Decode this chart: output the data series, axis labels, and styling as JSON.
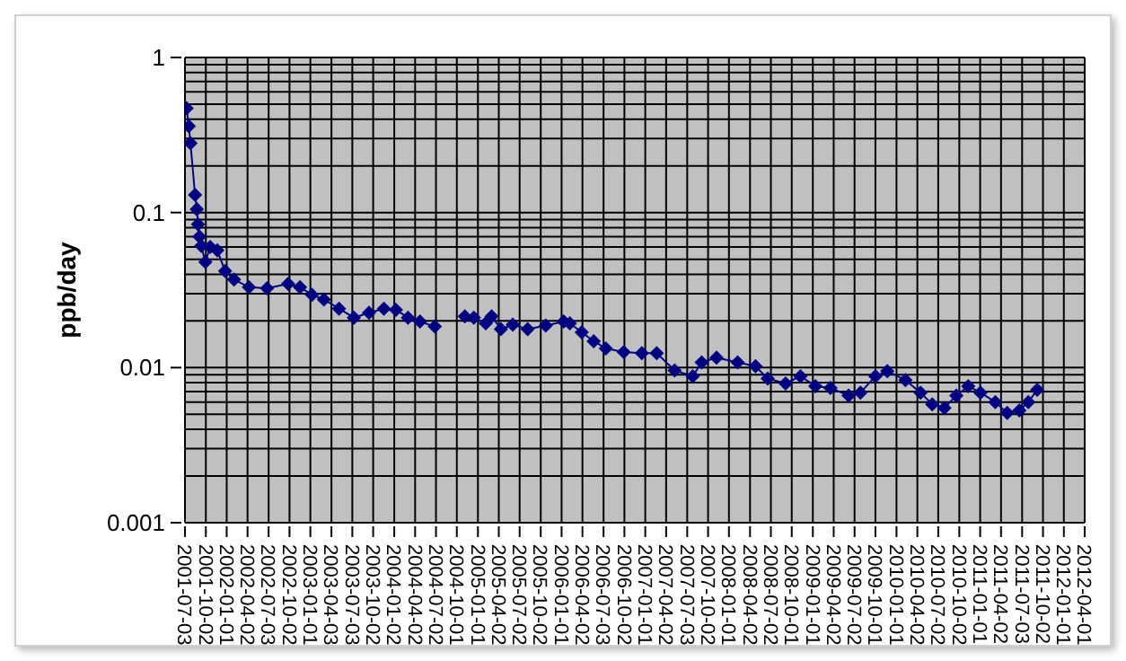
{
  "chart_data": {
    "type": "line",
    "ylabel": "ppb/day",
    "log": true,
    "grid": true,
    "legend": false,
    "marker": "diamond",
    "line_style": "solid",
    "xlim": [
      "2001-07-03",
      "2012-04-01"
    ],
    "xticks": [
      "2001-07-03",
      "2001-10-02",
      "2002-01-01",
      "2002-04-02",
      "2002-07-03",
      "2002-10-02",
      "2003-01-01",
      "2003-04-03",
      "2003-07-03",
      "2003-10-02",
      "2004-01-02",
      "2004-04-02",
      "2004-07-02",
      "2004-10-01",
      "2005-01-01",
      "2005-04-02",
      "2005-07-02",
      "2005-10-02",
      "2006-01-01",
      "2006-04-02",
      "2006-07-03",
      "2006-10-02",
      "2007-01-01",
      "2007-04-02",
      "2007-07-03",
      "2007-10-02",
      "2008-01-01",
      "2008-04-02",
      "2008-07-02",
      "2008-10-01",
      "2009-01-01",
      "2009-04-02",
      "2009-07-02",
      "2009-10-01",
      "2010-01-01",
      "2010-04-02",
      "2010-07-02",
      "2010-10-02",
      "2011-01-01",
      "2011-04-02",
      "2011-07-03",
      "2011-10-02",
      "2012-01-01",
      "2012-04-01"
    ],
    "ylim": [
      0.001,
      1
    ],
    "yticks": [
      0.001,
      {
        "value": 0.002,
        "label": null
      },
      {
        "value": 0.003,
        "label": null
      },
      {
        "value": 0.004,
        "label": null
      },
      {
        "value": 0.005,
        "label": null
      },
      {
        "value": 0.006,
        "label": null
      },
      {
        "value": 0.007,
        "label": null
      },
      {
        "value": 0.008,
        "label": null
      },
      {
        "value": 0.009,
        "label": null
      },
      0.01,
      {
        "value": 0.02,
        "label": null
      },
      {
        "value": 0.03,
        "label": null
      },
      {
        "value": 0.04,
        "label": null
      },
      {
        "value": 0.05,
        "label": null
      },
      {
        "value": 0.06,
        "label": null
      },
      {
        "value": 0.07,
        "label": null
      },
      {
        "value": 0.08,
        "label": null
      },
      {
        "value": 0.09,
        "label": null
      },
      0.1,
      {
        "value": 0.2,
        "label": null
      },
      {
        "value": 0.3,
        "label": null
      },
      {
        "value": 0.4,
        "label": null
      },
      {
        "value": 0.5,
        "label": null
      },
      {
        "value": 0.6,
        "label": null
      },
      {
        "value": 0.7,
        "label": null
      },
      {
        "value": 0.8,
        "label": null
      },
      {
        "value": 0.9,
        "label": null
      },
      1
    ],
    "x": [
      "2001-07-10",
      "2001-07-20",
      "2001-07-27",
      "2001-08-16",
      "2001-08-24",
      "2001-08-29",
      "2001-09-04",
      "2001-09-12",
      "2001-09-30",
      "2001-10-21",
      "2001-11-21",
      "2001-12-25",
      "2002-02-02",
      "2002-04-08",
      "2002-06-26",
      "2002-09-26",
      "2002-11-17",
      "2003-01-08",
      "2003-03-01",
      "2003-05-06",
      "2003-07-10",
      "2003-09-14",
      "2003-11-18",
      "2004-01-09",
      "2004-03-02",
      "2004-04-23",
      "2004-06-27",
      "2004-08-20",
      "2004-11-05",
      "2004-12-14",
      "2005-02-04",
      "2005-03-02",
      "2005-04-11",
      "2005-06-02",
      "2005-08-06",
      "2005-10-24",
      "2006-01-10",
      "2006-02-06",
      "2006-03-30",
      "2006-05-21",
      "2006-07-13",
      "2006-09-29",
      "2006-12-17",
      "2007-02-20",
      "2007-05-09",
      "2007-07-27",
      "2007-09-04",
      "2007-11-08",
      "2008-02-08",
      "2008-04-26",
      "2008-06-18",
      "2008-09-04",
      "2008-11-08",
      "2009-01-12",
      "2009-03-19",
      "2009-06-06",
      "2009-07-28",
      "2009-10-01",
      "2009-11-22",
      "2010-02-09",
      "2010-04-16",
      "2010-06-06",
      "2010-07-29",
      "2010-09-19",
      "2010-11-10",
      "2011-01-02",
      "2011-03-08",
      "2011-04-29",
      "2011-06-21",
      "2011-07-30",
      "2011-09-07"
    ],
    "series": [
      {
        "color": "#000080",
        "values": [
          0.47,
          0.36,
          0.28,
          0.13,
          0.105,
          0.084,
          0.07,
          0.061,
          0.048,
          0.06,
          0.057,
          0.042,
          0.037,
          0.033,
          0.0325,
          0.0347,
          0.033,
          0.0295,
          0.0275,
          0.024,
          0.021,
          0.0226,
          0.024,
          0.0236,
          0.021,
          0.0198,
          0.0184,
          null,
          0.0214,
          0.021,
          0.0193,
          0.0214,
          0.0177,
          0.0189,
          0.0177,
          0.0187,
          0.0198,
          0.0193,
          0.0169,
          0.0148,
          0.0133,
          0.0126,
          0.0124,
          0.0124,
          0.0096,
          0.0088,
          0.0108,
          0.0116,
          0.0108,
          0.0102,
          0.0085,
          0.0079,
          0.0088,
          0.0076,
          0.0074,
          0.0066,
          0.0069,
          0.0088,
          0.0095,
          0.0083,
          0.0069,
          0.0058,
          0.0055,
          0.0066,
          0.0076,
          0.0069,
          0.006,
          0.0051,
          0.0053,
          0.006,
          0.0072
        ]
      }
    ]
  }
}
